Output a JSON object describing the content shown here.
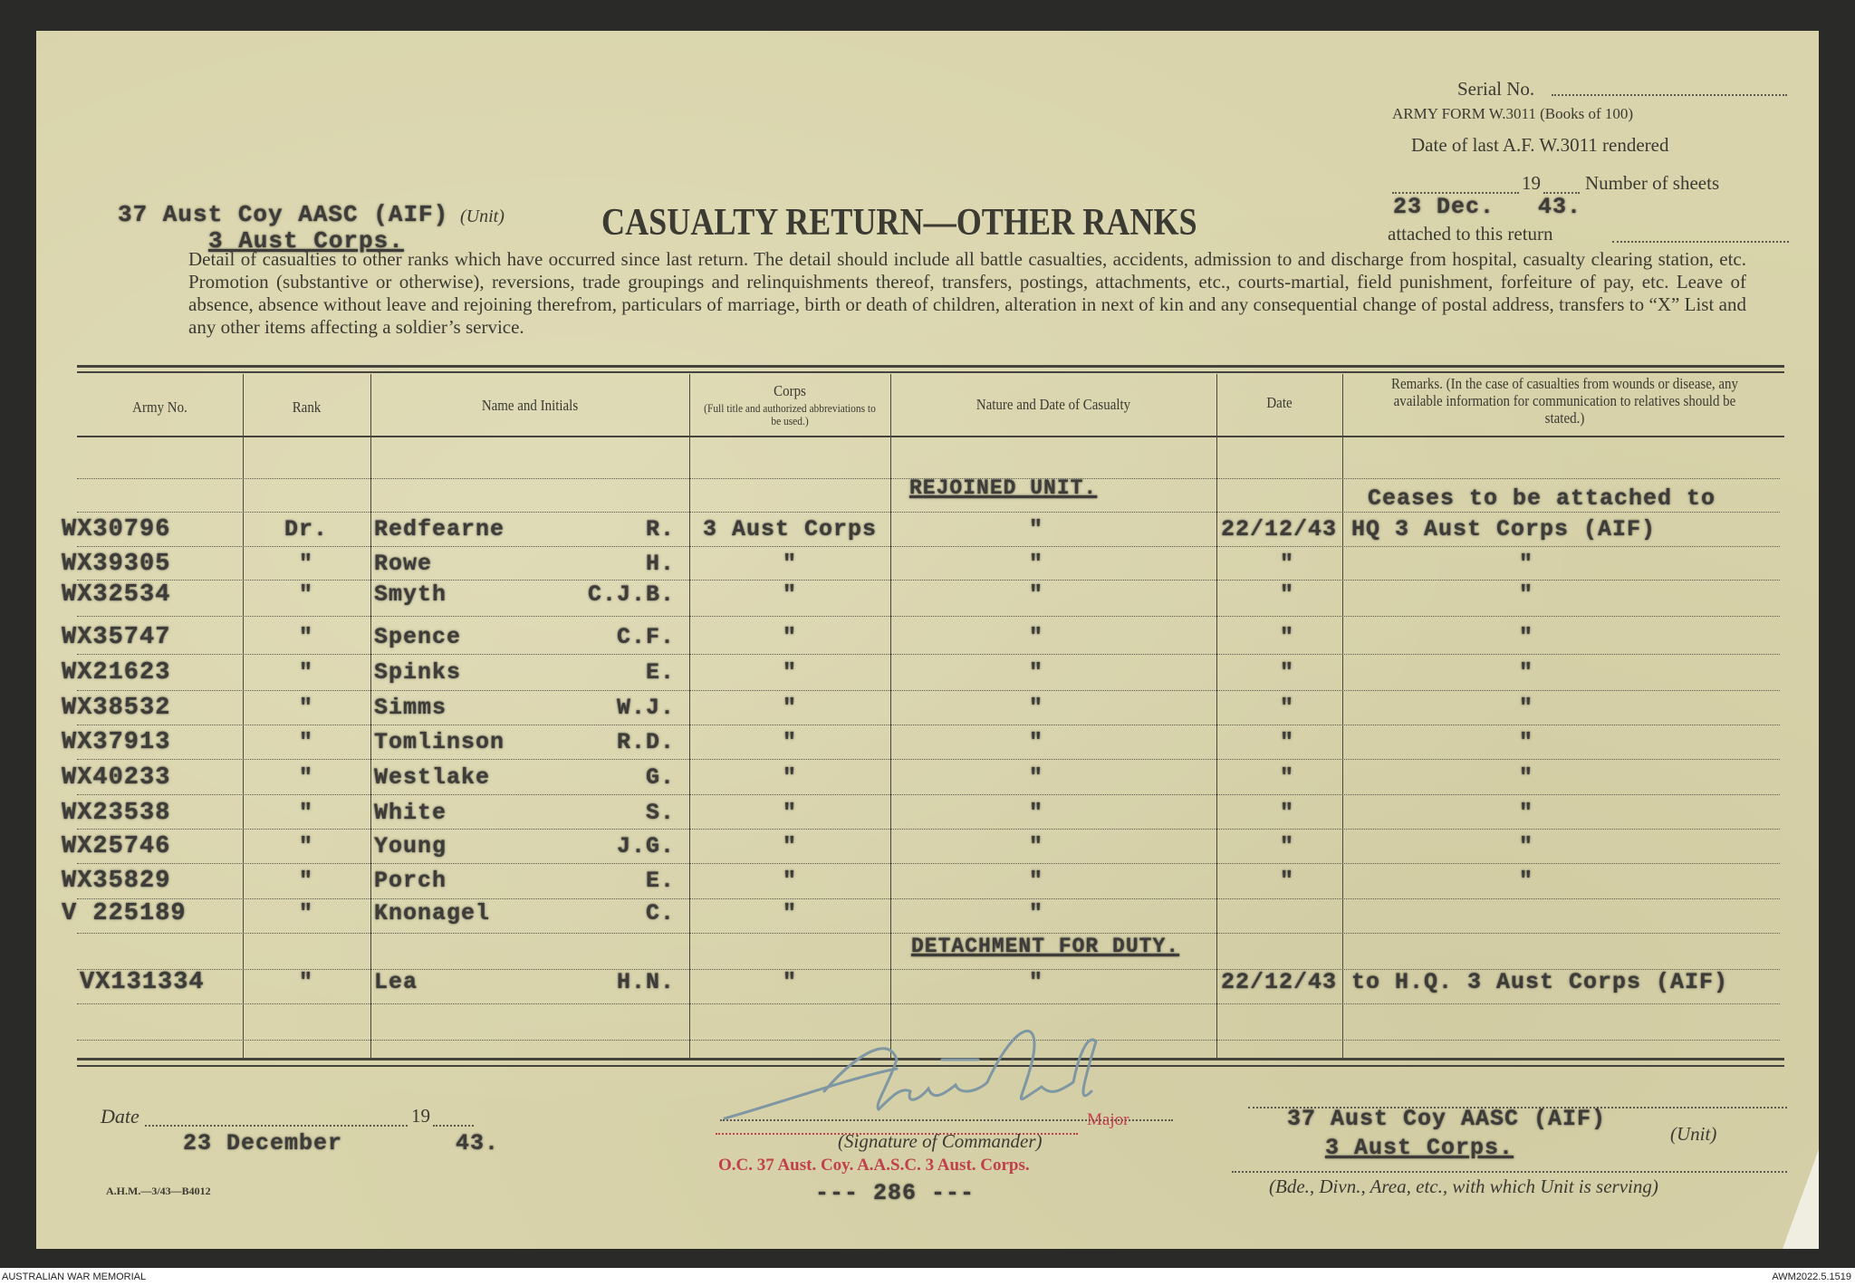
{
  "form": {
    "serial_label": "Serial No.",
    "army_form": "ARMY FORM W.3011 (Books of 100)",
    "date_last_label": "Date of last A.F. W.3011 rendered",
    "year_prefix": "19",
    "sheets_label": "Number of sheets",
    "date_last_value": "23 Dec.   43.",
    "attached_label": "attached to this return",
    "title": "CASUALTY RETURN—OTHER RANKS",
    "unit_value": "37 Aust Coy AASC (AIF)",
    "unit_label": "(Unit)",
    "unit_sub_value": "3 Aust Corps.",
    "instructions": "Detail of casualties to other ranks which have occurred since last return. The detail should include all battle casualties, accidents, admission to and discharge from hospital, casualty clearing station, etc. Promotion (substantive or otherwise), reversions, trade groupings and relinquishments thereof, transfers, postings, attachments, etc., courts-martial, field punishment, forfeiture of pay, etc. Leave of absence, absence without leave and rejoining therefrom, particulars of marriage, birth or death of children, alteration in next of kin and any consequential change of postal address, transfers to “X” List and any other items affecting a soldier’s service."
  },
  "table": {
    "headers": {
      "army_no": "Army No.",
      "rank": "Rank",
      "name": "Name and Initials",
      "corps": "Corps",
      "corps_note": "(Full title and authorized abbreviations to be used.)",
      "nature": "Nature and Date of Casualty",
      "date": "Date",
      "remarks": "Remarks. (In the case of casualties from wounds or disease, any available information for communication to relatives should be stated.)"
    },
    "section_rejoined": "REJOINED UNIT.",
    "remarks_first_line": "Ceases to be attached to",
    "section_detachment": "DETACHMENT FOR DUTY.",
    "rows": [
      {
        "army_no": "WX30796",
        "rank": "Dr.",
        "surname": "Redfearne",
        "initials": "R.",
        "corps": "3 Aust Corps",
        "nature": "\"",
        "date": "22/12/43",
        "remarks": "HQ 3 Aust Corps (AIF)"
      },
      {
        "army_no": "WX39305",
        "rank": "\"",
        "surname": "Rowe",
        "initials": "H.",
        "corps": "\"",
        "nature": "\"",
        "date": "\"",
        "remarks": "\""
      },
      {
        "army_no": "WX32534",
        "rank": "\"",
        "surname": "Smyth",
        "initials": "C.J.B.",
        "corps": "\"",
        "nature": "\"",
        "date": "\"",
        "remarks": "\""
      },
      {
        "army_no": "WX35747",
        "rank": "\"",
        "surname": "Spence",
        "initials": "C.F.",
        "corps": "\"",
        "nature": "\"",
        "date": "\"",
        "remarks": "\""
      },
      {
        "army_no": "WX21623",
        "rank": "\"",
        "surname": "Spinks",
        "initials": "E.",
        "corps": "\"",
        "nature": "\"",
        "date": "\"",
        "remarks": "\""
      },
      {
        "army_no": "WX38532",
        "rank": "\"",
        "surname": "Simms",
        "initials": "W.J.",
        "corps": "\"",
        "nature": "\"",
        "date": "\"",
        "remarks": "\""
      },
      {
        "army_no": "WX37913",
        "rank": "\"",
        "surname": "Tomlinson",
        "initials": "R.D.",
        "corps": "\"",
        "nature": "\"",
        "date": "\"",
        "remarks": "\""
      },
      {
        "army_no": "WX40233",
        "rank": "\"",
        "surname": "Westlake",
        "initials": "G.",
        "corps": "\"",
        "nature": "\"",
        "date": "\"",
        "remarks": "\""
      },
      {
        "army_no": "WX23538",
        "rank": "\"",
        "surname": "White",
        "initials": "S.",
        "corps": "\"",
        "nature": "\"",
        "date": "\"",
        "remarks": "\""
      },
      {
        "army_no": "WX25746",
        "rank": "\"",
        "surname": "Young",
        "initials": "J.G.",
        "corps": "\"",
        "nature": "\"",
        "date": "\"",
        "remarks": "\""
      },
      {
        "army_no": "WX35829",
        "rank": "\"",
        "surname": "Porch",
        "initials": "E.",
        "corps": "\"",
        "nature": "\"",
        "date": "\"",
        "remarks": "\""
      },
      {
        "army_no": "V 225189",
        "rank": "\"",
        "surname": "Knonagel",
        "initials": "C.",
        "corps": "\"",
        "nature": "\"",
        "date": "",
        "remarks": ""
      },
      {
        "army_no": "VX131334",
        "rank": "\"",
        "surname": "Lea",
        "initials": "H.N.",
        "corps": "\"",
        "nature": "\"",
        "date": "22/12/43",
        "remarks": "to H.Q. 3 Aust Corps (AIF)"
      }
    ]
  },
  "footer": {
    "date_label": "Date",
    "year_prefix": "19",
    "date_value": "23 December",
    "year_value": "43.",
    "rank_stamp": "Major",
    "signature_label": "(Signature of Commander)",
    "oc_stamp": "O.C. 37 Aust. Coy. A.A.S.C. 3 Aust. Corps.",
    "page_number": "--- 286 ---",
    "unit_value": "37 Aust Coy AASC (AIF)",
    "unit_sub_value": "3 Aust Corps.",
    "unit_label": "(Unit)",
    "formation_label": "(Bde., Divn., Area, etc., with which Unit is serving)",
    "print_code": "A.H.M.—3/43—B4012"
  },
  "captions": {
    "left": "AUSTRALIAN WAR MEMORIAL",
    "right": "AWM2022.5.1519"
  },
  "colors": {
    "paper": "#d9d4ab",
    "stamp_red": "#c0404c",
    "signature_ink": "#7f97a3"
  }
}
